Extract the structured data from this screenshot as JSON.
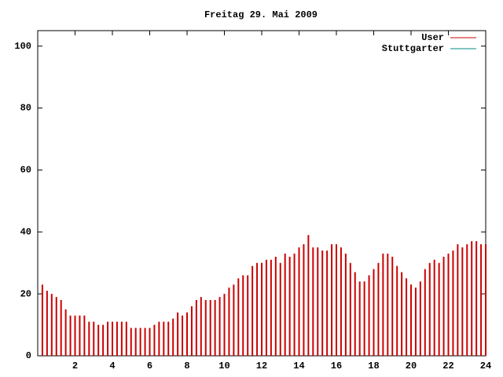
{
  "chart_data": {
    "type": "impulse",
    "title": "Freitag 29. Mai 2009",
    "x": [
      0.25,
      0.5,
      0.75,
      1,
      1.25,
      1.5,
      1.75,
      2,
      2.25,
      2.5,
      2.75,
      3,
      3.25,
      3.5,
      3.75,
      4,
      4.25,
      4.5,
      4.75,
      5,
      5.25,
      5.5,
      5.75,
      6,
      6.25,
      6.5,
      6.75,
      7,
      7.25,
      7.5,
      7.75,
      8,
      8.25,
      8.5,
      8.75,
      9,
      9.25,
      9.5,
      9.75,
      10,
      10.25,
      10.5,
      10.75,
      11,
      11.25,
      11.5,
      11.75,
      12,
      12.25,
      12.5,
      12.75,
      13,
      13.25,
      13.5,
      13.75,
      14,
      14.25,
      14.5,
      14.75,
      15,
      15.25,
      15.5,
      15.75,
      16,
      16.25,
      16.5,
      16.75,
      17,
      17.25,
      17.5,
      17.75,
      18,
      18.25,
      18.5,
      18.75,
      19,
      19.25,
      19.5,
      19.75,
      20,
      20.25,
      20.5,
      20.75,
      21,
      21.25,
      21.5,
      21.75,
      22,
      22.25,
      22.5,
      22.75,
      23,
      23.25,
      23.5,
      23.75,
      24
    ],
    "series": [
      {
        "name": "User",
        "color": "#cc0000",
        "values": [
          23,
          21,
          20,
          19,
          18,
          15,
          13,
          13,
          13,
          13,
          11,
          11,
          10,
          10,
          11,
          11,
          11,
          11,
          11,
          9,
          9,
          9,
          9,
          9,
          10,
          11,
          11,
          11,
          12,
          14,
          13,
          14,
          16,
          18,
          19,
          18,
          18,
          18,
          19,
          20,
          22,
          23,
          25,
          26,
          26,
          29,
          30,
          30,
          31,
          31,
          32,
          30,
          33,
          32,
          33,
          35,
          36,
          39,
          35,
          35,
          34,
          34,
          36,
          36,
          35,
          33,
          30,
          27,
          24,
          24,
          26,
          28,
          30,
          33,
          33,
          32,
          29,
          27,
          25,
          23,
          22,
          24,
          28,
          30,
          31,
          30,
          32,
          33,
          34,
          36,
          35,
          36,
          37,
          37,
          36,
          36
        ]
      },
      {
        "name": "Stuttgarter",
        "color": "#008b8b",
        "values": [
          null,
          null,
          null,
          null,
          null,
          null,
          null,
          null,
          null,
          null,
          null,
          null,
          null,
          null,
          null,
          null,
          null,
          null,
          null,
          null,
          null,
          null,
          null,
          null,
          null,
          null,
          null,
          null,
          null,
          null,
          null,
          null,
          null,
          null,
          null,
          null,
          null,
          null,
          null,
          null,
          null,
          null,
          null,
          null,
          null,
          null,
          null,
          null,
          null,
          null,
          null,
          null,
          null,
          null,
          null,
          null,
          null,
          null,
          null,
          null,
          null,
          null,
          null,
          null,
          null,
          null,
          null,
          null,
          null,
          null,
          null,
          null,
          null,
          null,
          null,
          null,
          null,
          null,
          null,
          null,
          null,
          null,
          null,
          null,
          null,
          null,
          null,
          null,
          null,
          null,
          null,
          null,
          null,
          null,
          null,
          null
        ]
      }
    ],
    "xlim": [
      0,
      24
    ],
    "xticks": [
      2,
      4,
      6,
      8,
      10,
      12,
      14,
      16,
      18,
      20,
      22,
      24
    ],
    "ylim": [
      0,
      105
    ],
    "yticks": [
      0,
      20,
      40,
      60,
      80,
      100
    ],
    "legend": "upper right"
  }
}
